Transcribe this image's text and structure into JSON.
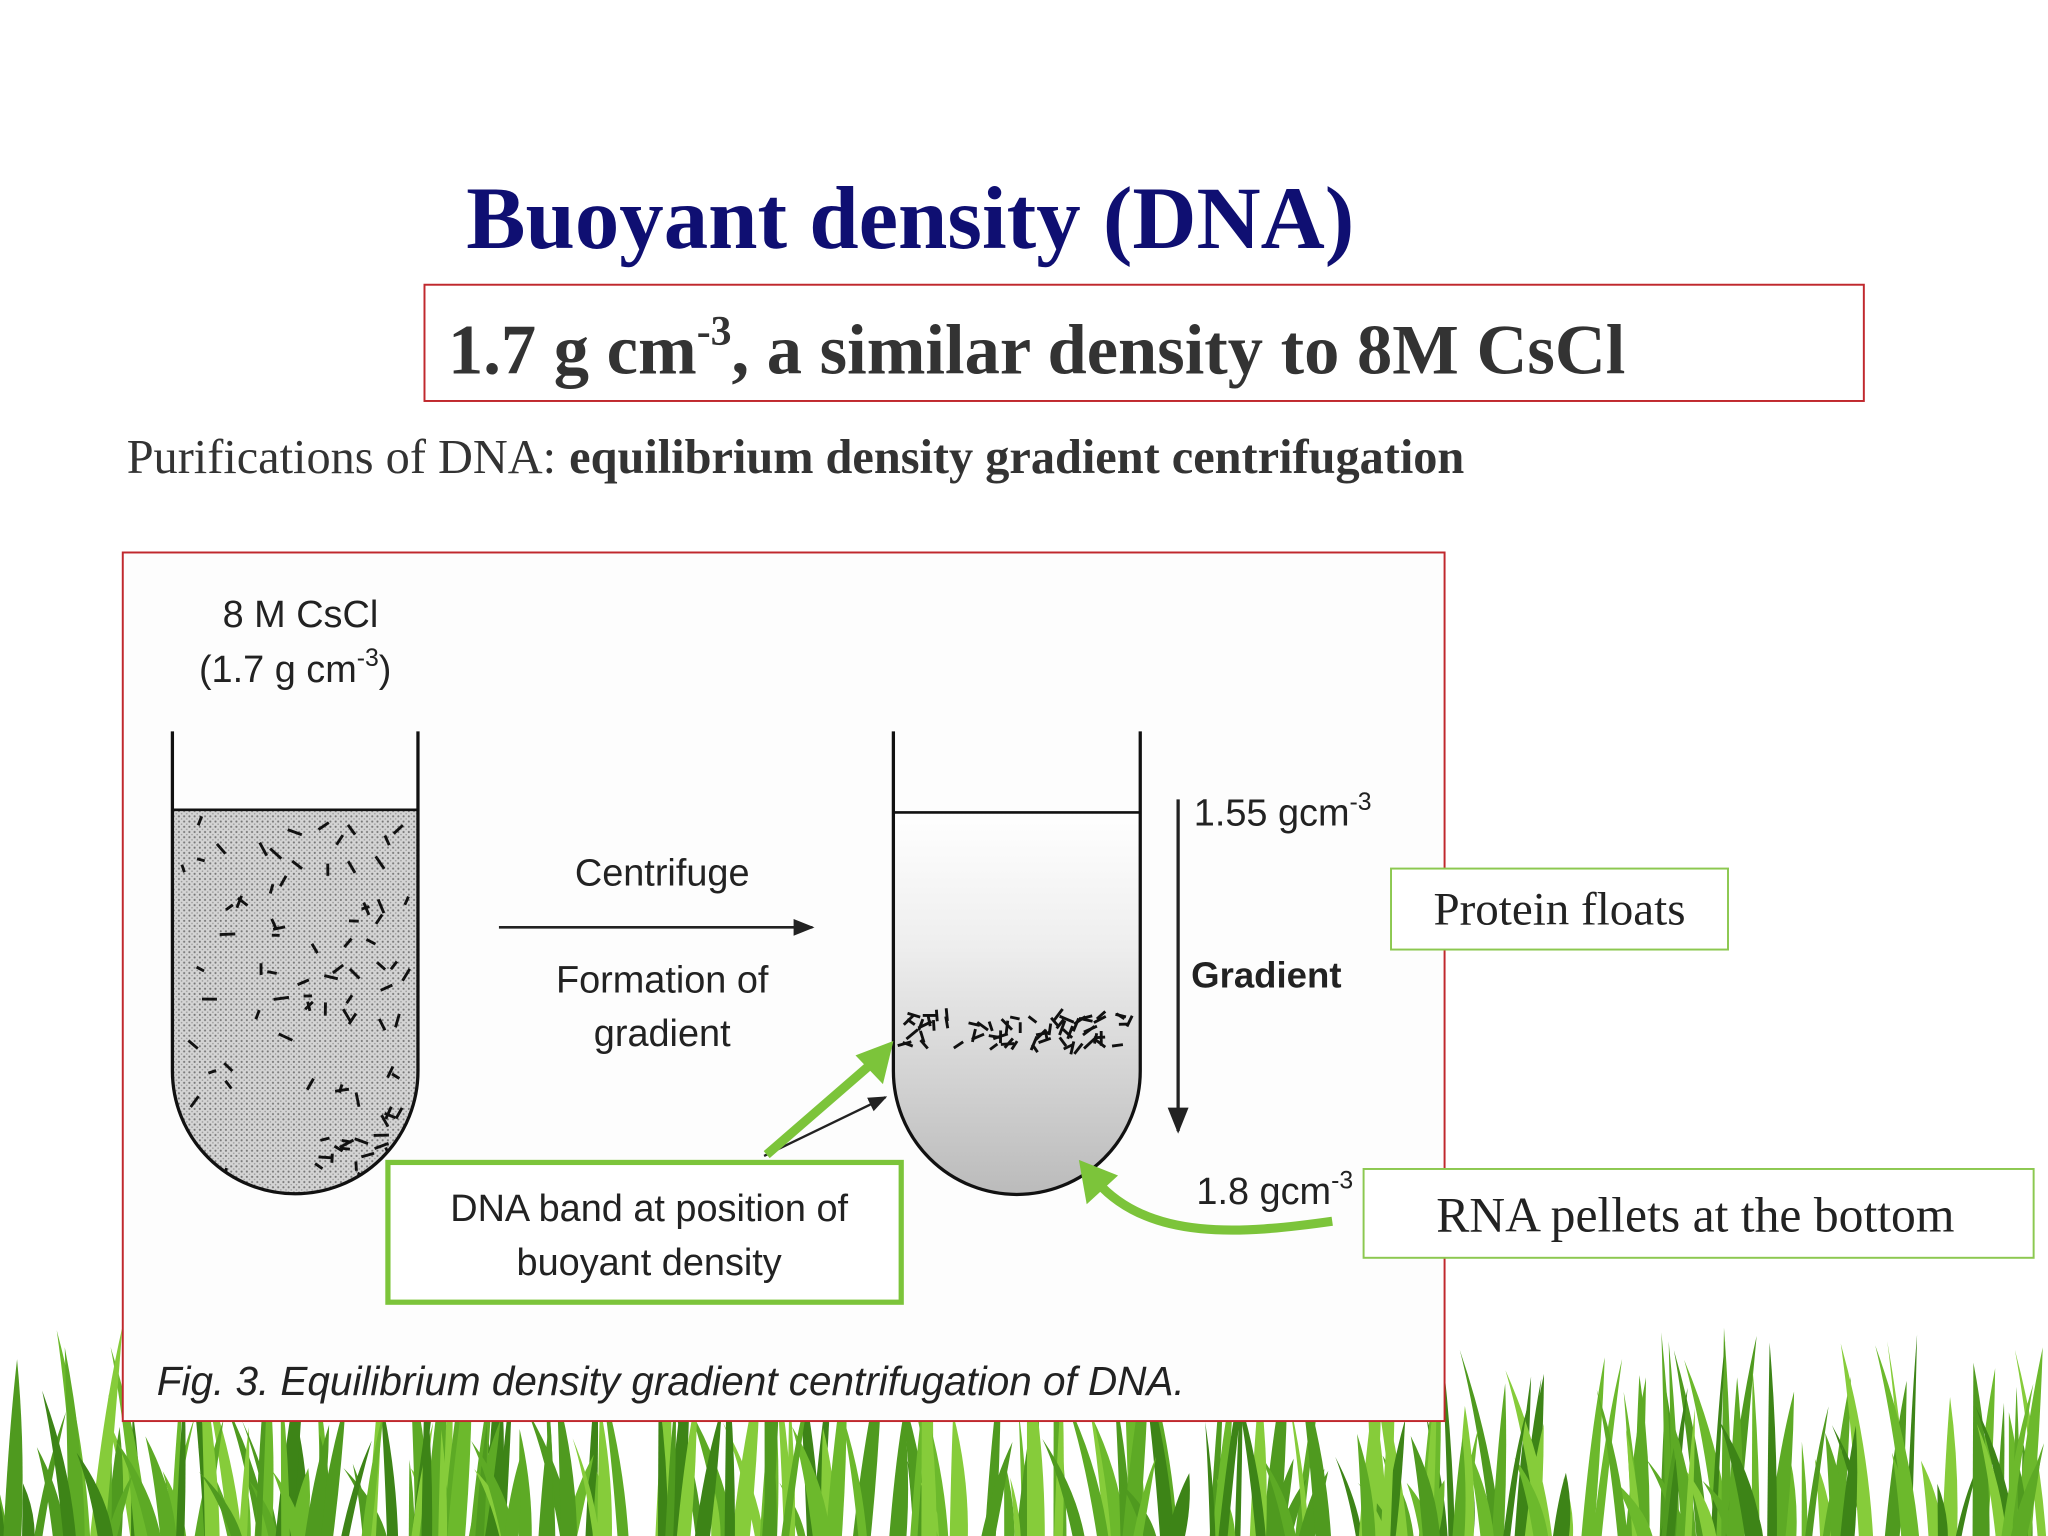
{
  "title": "Buoyant density (DNA)",
  "subtitle": {
    "text": "1.7 g cm",
    "superscript": "-3",
    "rest": ", a similar density to 8M CsCl"
  },
  "intro": {
    "lead": "Purifications of DNA:",
    "emphasis": "equilibrium density gradient centrifugation"
  },
  "figure": {
    "tube_label": "8 M CsCl",
    "tube_density": {
      "open": "(1.7 g cm",
      "superscript": "-3",
      "close": ")"
    },
    "arrow_top": "Centrifuge",
    "arrow_bottom": [
      "Formation of",
      "gradient"
    ],
    "top_density": {
      "text": "1.55 gcm",
      "superscript": "-3"
    },
    "gradient": "Gradient",
    "bottom_density": {
      "text": "1.8 gcm",
      "superscript": "-3"
    },
    "band_label": [
      "DNA band at position of",
      "buoyant density"
    ],
    "caption": "Fig. 3. Equilibrium density gradient centrifugation of DNA."
  },
  "callouts": {
    "protein": "Protein floats",
    "rna": "RNA pellets at the bottom"
  }
}
